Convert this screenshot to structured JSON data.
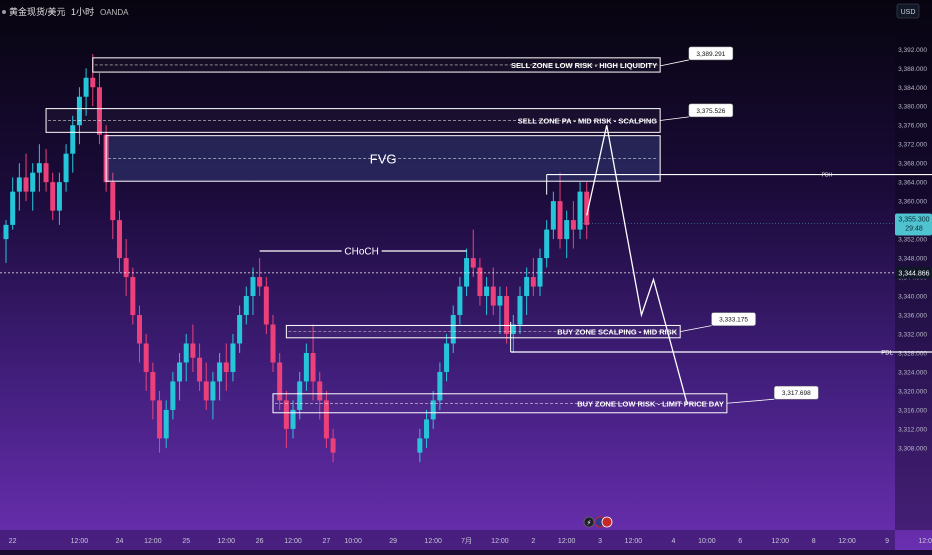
{
  "header": {
    "symbol": "黄金现货/美元",
    "interval": "1小时",
    "broker": "OANDA"
  },
  "axis": {
    "currency": "USD",
    "current_price": "3,355.300",
    "countdown": "29:48",
    "crosshair_price": "3,344.866"
  },
  "colors": {
    "background_top": "#07040f",
    "background_bottom": "#6a2fb0",
    "up_candle": "#26c6da",
    "down_candle": "#ec407a",
    "zone_border": "#ffffff",
    "price_label_bg": "#4fc3d0"
  },
  "chart_data": {
    "type": "candlestick",
    "ylim": [
      3306,
      3394
    ],
    "y_ticks": [
      3392,
      3388,
      3384,
      3380,
      3376,
      3372,
      3368,
      3364,
      3360,
      3356,
      3352,
      3348,
      3344,
      3340,
      3336,
      3332,
      3328,
      3324,
      3320,
      3316,
      3312,
      3308
    ],
    "y_tick_labels": [
      "3,392.000",
      "3,388.000",
      "3,384.000",
      "3,380.000",
      "3,376.000",
      "3,372.000",
      "3,368.000",
      "3,364.000",
      "3,360.000",
      "3,356.000",
      "3,352.000",
      "3,348.000",
      "3,344.000",
      "3,340.000",
      "3,336.000",
      "3,332.000",
      "3,328.000",
      "3,324.000",
      "3,320.000",
      "3,316.000",
      "3,312.000",
      "3,308.000"
    ],
    "x_ticks": [
      {
        "label": "22",
        "x": 0.5
      },
      {
        "label": "12:00",
        "x": 5.5
      },
      {
        "label": "24",
        "x": 8.5
      },
      {
        "label": "12:00",
        "x": 11
      },
      {
        "label": "25",
        "x": 13.5
      },
      {
        "label": "12:00",
        "x": 16.5
      },
      {
        "label": "26",
        "x": 19
      },
      {
        "label": "12:00",
        "x": 21.5
      },
      {
        "label": "27",
        "x": 24
      },
      {
        "label": "10:00",
        "x": 26
      },
      {
        "label": "29",
        "x": 29
      },
      {
        "label": "12:00",
        "x": 32
      },
      {
        "label": "7月",
        "x": 34.5
      },
      {
        "label": "12:00",
        "x": 37
      },
      {
        "label": "2",
        "x": 39.5
      },
      {
        "label": "12:00",
        "x": 42
      },
      {
        "label": "3",
        "x": 44.5
      },
      {
        "label": "12:00",
        "x": 47
      },
      {
        "label": "4",
        "x": 50
      },
      {
        "label": "10:00",
        "x": 52.5
      },
      {
        "label": "6",
        "x": 55
      },
      {
        "label": "12:00",
        "x": 58
      },
      {
        "label": "8",
        "x": 60.5
      },
      {
        "label": "12:00",
        "x": 63
      },
      {
        "label": "9",
        "x": 66
      },
      {
        "label": "12:00",
        "x": 69
      }
    ],
    "candles": [
      [
        0,
        3352,
        3356,
        3347,
        3355
      ],
      [
        0.5,
        3355,
        3365,
        3354,
        3362
      ],
      [
        1,
        3362,
        3368,
        3358,
        3365
      ],
      [
        1.5,
        3365,
        3370,
        3360,
        3362
      ],
      [
        2,
        3362,
        3368,
        3358,
        3366
      ],
      [
        2.5,
        3366,
        3372,
        3362,
        3368
      ],
      [
        3,
        3368,
        3371,
        3362,
        3364
      ],
      [
        3.5,
        3364,
        3366,
        3356,
        3358
      ],
      [
        4,
        3358,
        3366,
        3355,
        3364
      ],
      [
        4.5,
        3364,
        3372,
        3362,
        3370
      ],
      [
        5,
        3370,
        3378,
        3366,
        3376
      ],
      [
        5.5,
        3376,
        3384,
        3372,
        3382
      ],
      [
        6,
        3382,
        3388,
        3378,
        3386
      ],
      [
        6.5,
        3386,
        3391,
        3380,
        3384
      ],
      [
        7,
        3384,
        3387,
        3372,
        3374
      ],
      [
        7.5,
        3374,
        3376,
        3362,
        3364
      ],
      [
        8,
        3364,
        3366,
        3352,
        3356
      ],
      [
        8.5,
        3356,
        3358,
        3345,
        3348
      ],
      [
        9,
        3348,
        3352,
        3340,
        3344
      ],
      [
        9.5,
        3344,
        3346,
        3334,
        3336
      ],
      [
        10,
        3336,
        3338,
        3326,
        3330
      ],
      [
        10.5,
        3330,
        3332,
        3320,
        3324
      ],
      [
        11,
        3324,
        3326,
        3314,
        3318
      ],
      [
        11.5,
        3318,
        3320,
        3307,
        3310
      ],
      [
        12,
        3310,
        3318,
        3308,
        3316
      ],
      [
        12.5,
        3316,
        3324,
        3314,
        3322
      ],
      [
        13,
        3322,
        3328,
        3318,
        3326
      ],
      [
        13.5,
        3326,
        3332,
        3322,
        3330
      ],
      [
        14,
        3330,
        3334,
        3324,
        3327
      ],
      [
        14.5,
        3327,
        3330,
        3320,
        3322
      ],
      [
        15,
        3322,
        3326,
        3316,
        3318
      ],
      [
        15.5,
        3318,
        3324,
        3314,
        3322
      ],
      [
        16,
        3322,
        3328,
        3318,
        3326
      ],
      [
        16.5,
        3326,
        3330,
        3320,
        3324
      ],
      [
        17,
        3324,
        3332,
        3322,
        3330
      ],
      [
        17.5,
        3330,
        3338,
        3328,
        3336
      ],
      [
        18,
        3336,
        3342,
        3334,
        3340
      ],
      [
        18.5,
        3340,
        3346,
        3336,
        3344
      ],
      [
        19,
        3344,
        3348,
        3340,
        3342
      ],
      [
        19.5,
        3342,
        3344,
        3332,
        3334
      ],
      [
        20,
        3334,
        3336,
        3324,
        3326
      ],
      [
        20.5,
        3326,
        3328,
        3316,
        3318
      ],
      [
        21,
        3318,
        3320,
        3308,
        3312
      ],
      [
        21.5,
        3312,
        3318,
        3310,
        3316
      ],
      [
        22,
        3316,
        3324,
        3314,
        3322
      ],
      [
        22.5,
        3322,
        3330,
        3320,
        3328
      ],
      [
        23,
        3328,
        3334,
        3318,
        3322
      ],
      [
        23.5,
        3322,
        3324,
        3314,
        3318
      ],
      [
        24,
        3318,
        3320,
        3308,
        3310
      ],
      [
        24.5,
        3310,
        3312,
        3305,
        3307
      ],
      [
        31,
        3307,
        3312,
        3305,
        3310
      ],
      [
        31.5,
        3310,
        3316,
        3308,
        3314
      ],
      [
        32,
        3314,
        3320,
        3312,
        3318
      ],
      [
        32.5,
        3318,
        3326,
        3316,
        3324
      ],
      [
        33,
        3324,
        3332,
        3322,
        3330
      ],
      [
        33.5,
        3330,
        3338,
        3328,
        3336
      ],
      [
        34,
        3336,
        3344,
        3334,
        3342
      ],
      [
        34.5,
        3342,
        3350,
        3340,
        3348
      ],
      [
        35,
        3348,
        3354,
        3344,
        3346
      ],
      [
        35.5,
        3346,
        3348,
        3338,
        3340
      ],
      [
        36,
        3340,
        3344,
        3336,
        3342
      ],
      [
        36.5,
        3342,
        3346,
        3336,
        3338
      ],
      [
        37,
        3338,
        3342,
        3332,
        3340
      ],
      [
        37.5,
        3340,
        3342,
        3330,
        3332
      ],
      [
        38,
        3332,
        3336,
        3328,
        3334
      ],
      [
        38.5,
        3334,
        3342,
        3332,
        3340
      ],
      [
        39,
        3340,
        3346,
        3336,
        3344
      ],
      [
        39.5,
        3344,
        3348,
        3340,
        3342
      ],
      [
        40,
        3342,
        3350,
        3340,
        3348
      ],
      [
        40.5,
        3348,
        3356,
        3346,
        3354
      ],
      [
        41,
        3354,
        3362,
        3352,
        3360
      ],
      [
        41.5,
        3360,
        3366,
        3350,
        3352
      ],
      [
        42,
        3352,
        3358,
        3348,
        3356
      ],
      [
        42.5,
        3356,
        3360,
        3350,
        3354
      ],
      [
        43,
        3354,
        3364,
        3352,
        3362
      ],
      [
        43.5,
        3362,
        3364,
        3352,
        3355
      ]
    ],
    "annotations": {
      "zones": [
        {
          "label": "SELL ZONE LOW RISK - HIGH LIQUIDITY",
          "top": 3390.2,
          "bottom": 3387.2,
          "x_from": 6.5,
          "x_to": 49
        },
        {
          "label": "SELL ZONE PA - MID RISK - SCALPING",
          "top": 3379.5,
          "bottom": 3374.5,
          "x_from": 3,
          "x_to": 49
        },
        {
          "label": "FVG",
          "top": 3373.8,
          "bottom": 3364.2,
          "x_from": 7.5,
          "x_to": 49
        },
        {
          "label": "BUY ZONE SCALPING - MID RISK",
          "top": 3333.8,
          "bottom": 3331.2,
          "x_from": 21,
          "x_to": 50.5
        },
        {
          "label": "BUY ZONE LOW RISK - LIMIT PRICE DAY",
          "top": 3319.4,
          "bottom": 3315.4,
          "x_from": 20,
          "x_to": 54
        }
      ],
      "choch": {
        "label": "CHoCH",
        "price": 3349.5,
        "x_from": 19,
        "x_to": 34.5
      },
      "pdh": {
        "label": "PDH",
        "price": 3365.6,
        "x_from": 40.5,
        "x_to": 70.5
      },
      "pdl": {
        "label": "PDL",
        "price": 3328.2,
        "x_from": 37.8,
        "x_to": 70.5
      },
      "callouts": [
        "3,389.291",
        "3,375.526",
        "3,333.175",
        "3,317.698"
      ],
      "projection": [
        [
          43.5,
          3357
        ],
        [
          45,
          3376
        ],
        [
          47.6,
          3336
        ],
        [
          48.5,
          3343.5
        ],
        [
          51,
          3317.5
        ]
      ]
    }
  }
}
